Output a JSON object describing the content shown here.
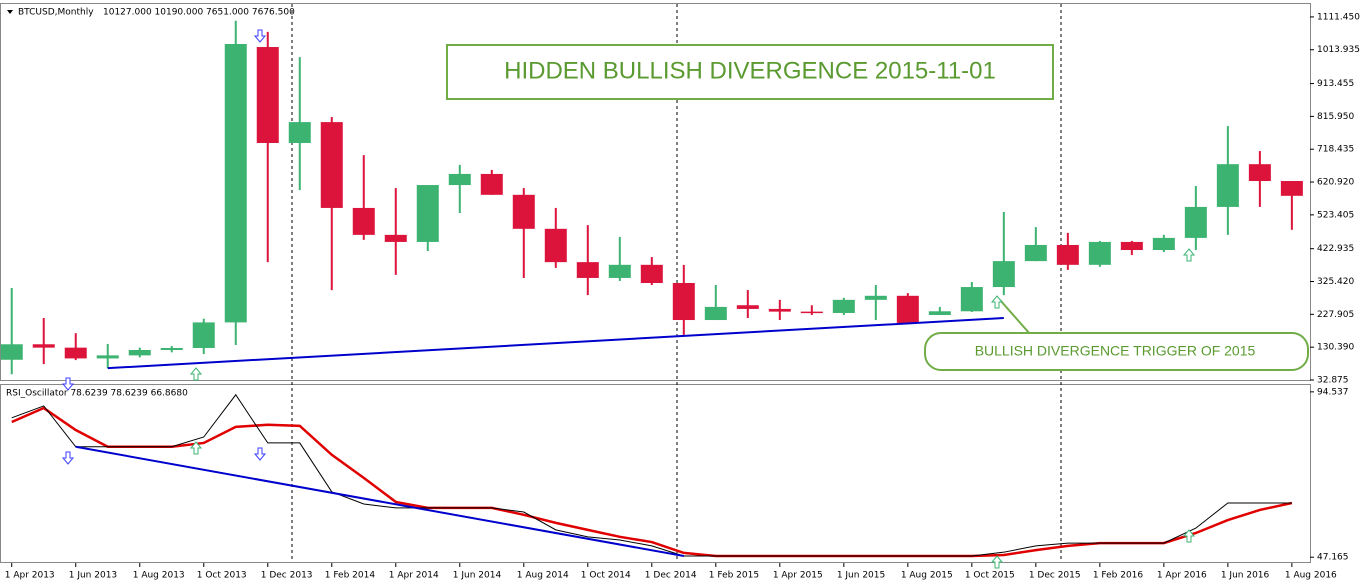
{
  "chart_data": [
    {
      "type": "candlestick",
      "symbol_label": "BTCUSD,Monthly",
      "quote": "10127.000 10190.000 7651.000 7676.500",
      "annotations": [
        "HIDDEN BULLISH DIVERGENCE 2015-11-01",
        "BULLISH DIVERGENCE TRIGGER OF 2015"
      ],
      "x": [
        "2013-04-01",
        "2013-05-01",
        "2013-06-01",
        "2013-07-01",
        "2013-08-01",
        "2013-09-01",
        "2013-10-01",
        "2013-11-01",
        "2013-12-01",
        "2014-01-01",
        "2014-02-01",
        "2014-03-01",
        "2014-04-01",
        "2014-05-01",
        "2014-06-01",
        "2014-07-01",
        "2014-08-01",
        "2014-09-01",
        "2014-10-01",
        "2014-11-01",
        "2014-12-01",
        "2015-01-01",
        "2015-02-01",
        "2015-03-01",
        "2015-04-01",
        "2015-05-01",
        "2015-06-01",
        "2015-07-01",
        "2015-08-01",
        "2015-09-01",
        "2015-10-01",
        "2015-11-01",
        "2015-12-01",
        "2016-01-01",
        "2016-02-01",
        "2016-03-01",
        "2016-04-01",
        "2016-05-01",
        "2016-06-01",
        "2016-07-01",
        "2016-08-01"
      ],
      "open": [
        93,
        139,
        129,
        97,
        106,
        122,
        128,
        204,
        1022,
        737,
        799,
        544,
        464,
        443,
        612,
        645,
        583,
        482,
        383,
        336,
        375,
        321,
        211,
        255,
        244,
        236,
        232,
        271,
        283,
        226,
        237,
        309,
        386,
        434,
        375,
        443,
        419,
        455,
        547,
        674,
        624
      ],
      "high": [
        306,
        217,
        172,
        140,
        129,
        134,
        215,
        1100,
        1067,
        992,
        814,
        701,
        603,
        612,
        672,
        657,
        603,
        544,
        493,
        458,
        398,
        375,
        315,
        300,
        271,
        255,
        277,
        315,
        291,
        250,
        324,
        532,
        487,
        470,
        446,
        446,
        464,
        609,
        787,
        713,
        624
      ],
      "low": [
        50,
        80,
        92,
        68,
        100,
        115,
        110,
        137,
        383,
        597,
        300,
        449,
        345,
        416,
        529,
        583,
        336,
        366,
        285,
        327,
        315,
        167,
        211,
        217,
        211,
        226,
        226,
        211,
        202,
        226,
        235,
        285,
        386,
        360,
        369,
        404,
        413,
        419,
        464,
        547,
        479
      ],
      "close": [
        139,
        129,
        97,
        106,
        122,
        128,
        204,
        1031,
        737,
        799,
        544,
        464,
        443,
        612,
        645,
        583,
        482,
        383,
        336,
        375,
        321,
        211,
        250,
        244,
        236,
        232,
        271,
        283,
        202,
        237,
        309,
        386,
        434,
        375,
        443,
        419,
        455,
        547,
        674,
        624,
        580
      ],
      "up_color": "#3cb371",
      "down_color": "#dc143c",
      "xlim": [
        "2013-03-20",
        "2016-08-18"
      ],
      "ylim": [
        32.875,
        1152.8
      ],
      "yticks": [
        {
          "value": 1111.45,
          "label": "1111.450"
        },
        1013.935,
        913.455,
        {
          "value": 815.95,
          "label": "815.950"
        },
        718.435,
        {
          "value": 620.92,
          "label": "620.920"
        },
        523.405,
        422.935,
        {
          "value": 325.42,
          "label": "325.420"
        },
        227.905,
        {
          "value": 130.39,
          "label": "130.390"
        },
        32.875
      ],
      "xticks": [
        {
          "value": "2013-04-01",
          "label": "1 Apr 2013"
        },
        {
          "value": "2013-06-01",
          "label": "1 Jun 2013"
        },
        {
          "value": "2013-08-01",
          "label": "1 Aug 2013"
        },
        {
          "value": "2013-10-01",
          "label": "1 Oct 2013"
        },
        {
          "value": "2013-12-01",
          "label": "1 Dec 2013"
        },
        {
          "value": "2014-02-01",
          "label": "1 Feb 2014"
        },
        {
          "value": "2014-04-01",
          "label": "1 Apr 2014"
        },
        {
          "value": "2014-06-01",
          "label": "1 Jun 2014"
        },
        {
          "value": "2014-08-01",
          "label": "1 Aug 2014"
        },
        {
          "value": "2014-10-01",
          "label": "1 Oct 2014"
        },
        {
          "value": "2014-12-01",
          "label": "1 Dec 2014"
        },
        {
          "value": "2015-02-01",
          "label": "1 Feb 2015"
        },
        {
          "value": "2015-04-01",
          "label": "1 Apr 2015"
        },
        {
          "value": "2015-06-01",
          "label": "1 Jun 2015"
        },
        {
          "value": "2015-08-01",
          "label": "1 Aug 2015"
        },
        {
          "value": "2015-10-01",
          "label": "1 Oct 2015"
        },
        {
          "value": "2015-12-01",
          "label": "1 Dec 2015"
        },
        {
          "value": "2016-02-01",
          "label": "1 Feb 2016"
        },
        {
          "value": "2016-04-01",
          "label": "1 Apr 2016"
        },
        {
          "value": "2016-06-01",
          "label": "1 Jun 2016"
        },
        {
          "value": "2016-08-01",
          "label": "1 Aug 2016"
        }
      ],
      "trendlines": [
        {
          "x": [
            "2013-07-01",
            "2015-11-01"
          ],
          "y": [
            68,
            217
          ],
          "color": "#0000cd"
        }
      ]
    },
    {
      "type": "line",
      "title": "RSI_Oscillator 78.6239 78.6239 66.8680",
      "series": [
        {
          "color": "#e00000",
          "values": [
            85.9,
            89.9,
            83.6,
            78.8,
            78.8,
            78.8,
            79.9,
            84.5,
            85.1,
            84.8,
            76.5,
            69.9,
            63.0,
            61.3,
            61.3,
            61.3,
            59.3,
            57.0,
            55.0,
            53.0,
            51.5,
            48.4,
            47.5,
            47.5,
            47.5,
            47.5,
            47.5,
            47.5,
            47.5,
            47.5,
            47.5,
            47.8,
            49.2,
            50.4,
            51.2,
            51.2,
            51.2,
            54.1,
            57.8,
            60.7,
            62.7
          ]
        },
        {
          "color": "#000000",
          "values": [
            87.1,
            90.5,
            78.8,
            78.8,
            78.8,
            78.8,
            81.6,
            93.7,
            79.9,
            79.9,
            65.9,
            62.4,
            61.3,
            61.3,
            61.3,
            61.3,
            60.1,
            55.0,
            53.0,
            52.1,
            50.4,
            47.5,
            47.5,
            47.5,
            47.5,
            47.5,
            47.5,
            47.5,
            47.5,
            47.5,
            47.5,
            48.6,
            50.4,
            51.2,
            51.2,
            51.2,
            51.2,
            55.5,
            62.7,
            62.7,
            62.7
          ]
        }
      ],
      "ylim": [
        45.5,
        96.5
      ],
      "yticks": [
        94.537,
        47.165
      ],
      "trendlines": [
        {
          "x": [
            "2013-06-01",
            "2015-01-01"
          ],
          "y": [
            78.8,
            47.5
          ],
          "color": "#0000cd"
        }
      ]
    }
  ]
}
